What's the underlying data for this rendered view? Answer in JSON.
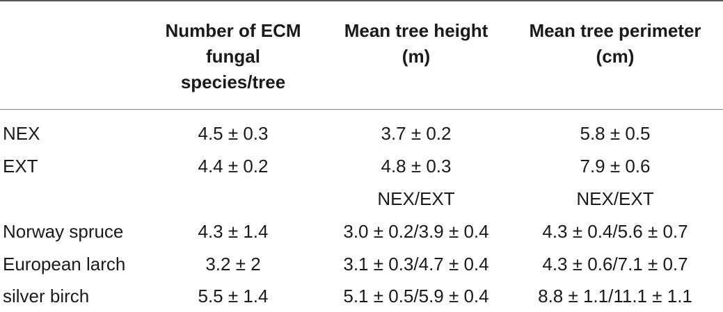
{
  "header": {
    "col1": [
      "Number of ECM",
      "fungal",
      "species/tree"
    ],
    "col2": [
      "Mean tree height",
      "(m)"
    ],
    "col3": [
      "Mean tree perimeter",
      "(cm)"
    ]
  },
  "rows": [
    {
      "label": "NEX",
      "v1": "4.5 ± 0.3",
      "v2": "3.7 ± 0.2",
      "v3": "5.8 ± 0.5"
    },
    {
      "label": "EXT",
      "v1": "4.4 ± 0.2",
      "v2": "4.8 ± 0.3",
      "v3": "7.9 ± 0.6"
    },
    {
      "label": "",
      "v1": "",
      "v2": "NEX/EXT",
      "v3": "NEX/EXT"
    },
    {
      "label": "Norway spruce",
      "v1": "4.3 ± 1.4",
      "v2": "3.0 ± 0.2/3.9 ± 0.4",
      "v3": "4.3 ± 0.4/5.6 ± 0.7"
    },
    {
      "label": "European larch",
      "v1": "3.2 ± 2",
      "v2": "3.1 ± 0.3/4.7 ± 0.4",
      "v3": "4.3 ± 0.6/7.1 ± 0.7"
    },
    {
      "label": "silver birch",
      "v1": "5.5 ± 1.4",
      "v2": "5.1 ± 0.5/5.9 ± 0.4",
      "v3": "8.8 ± 1.1/11.1 ± 1.1"
    }
  ]
}
